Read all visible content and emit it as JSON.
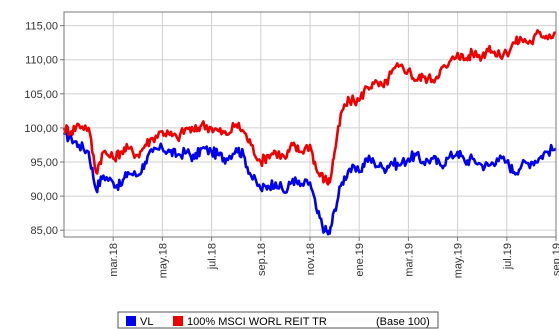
{
  "chart_data": {
    "type": "line",
    "x_tick_labels": [
      "mar.18",
      "may.18",
      "jul.18",
      "sep.18",
      "nov.18",
      "ene.19",
      "mar.19",
      "may.19",
      "jul.19",
      "sep.19"
    ],
    "ylim": [
      84,
      117
    ],
    "y_ticks": [
      85,
      90,
      95,
      100,
      105,
      110,
      115
    ],
    "y_tick_labels": [
      "85,00",
      "90,00",
      "95,00",
      "100,00",
      "105,00",
      "110,00",
      "115,00"
    ],
    "x_months_range": [
      0,
      20
    ],
    "series": [
      {
        "name": "VL",
        "color": "#0000ee",
        "x": [
          0,
          0.3,
          0.6,
          1.0,
          1.3,
          1.6,
          2.0,
          2.3,
          2.6,
          3.0,
          3.3,
          3.6,
          4.0,
          4.3,
          4.6,
          5.0,
          5.3,
          5.6,
          6.0,
          6.3,
          6.6,
          7.0,
          7.3,
          7.6,
          8.0,
          8.3,
          8.6,
          9.0,
          9.3,
          9.6,
          10.0,
          10.3,
          10.6,
          10.8,
          11.0,
          11.3,
          11.6,
          12.0,
          12.3,
          12.6,
          13.0,
          13.3,
          13.6,
          14.0,
          14.3,
          14.6,
          15.0,
          15.3,
          15.6,
          16.0,
          16.3,
          16.6,
          17.0,
          17.3,
          17.6,
          18.0,
          18.3,
          18.6,
          19.0,
          19.3,
          19.6,
          20.0
        ],
        "values": [
          99.0,
          98.5,
          97.5,
          96.5,
          91.0,
          93.0,
          92.0,
          91.5,
          93.5,
          93.0,
          95.0,
          96.5,
          97.0,
          96.5,
          96.0,
          96.5,
          95.5,
          97.0,
          96.5,
          96.0,
          95.5,
          97.0,
          96.0,
          93.0,
          91.0,
          91.5,
          92.0,
          90.5,
          92.5,
          91.5,
          92.0,
          87.5,
          85.0,
          84.5,
          88.0,
          92.0,
          94.0,
          93.5,
          95.5,
          95.0,
          94.0,
          95.0,
          94.5,
          95.5,
          96.0,
          95.0,
          95.5,
          94.5,
          95.5,
          96.5,
          95.0,
          95.5,
          94.5,
          94.5,
          95.5,
          95.0,
          93.5,
          94.5,
          95.0,
          95.5,
          96.5,
          97.0
        ]
      },
      {
        "name": "100% MSCI WORL REIT TR",
        "color": "#ee0000",
        "x": [
          0,
          0.3,
          0.6,
          1.0,
          1.3,
          1.6,
          2.0,
          2.3,
          2.6,
          3.0,
          3.3,
          3.6,
          4.0,
          4.3,
          4.6,
          5.0,
          5.3,
          5.6,
          6.0,
          6.3,
          6.6,
          7.0,
          7.3,
          7.6,
          8.0,
          8.3,
          8.6,
          9.0,
          9.3,
          9.6,
          10.0,
          10.3,
          10.6,
          10.8,
          11.0,
          11.3,
          11.6,
          12.0,
          12.3,
          12.6,
          13.0,
          13.3,
          13.6,
          14.0,
          14.3,
          14.6,
          15.0,
          15.3,
          15.6,
          16.0,
          16.3,
          16.6,
          17.0,
          17.3,
          17.6,
          18.0,
          18.3,
          18.6,
          19.0,
          19.3,
          19.6,
          20.0
        ],
        "values": [
          100.0,
          99.5,
          100.5,
          100.0,
          93.5,
          96.5,
          95.5,
          96.5,
          97.0,
          96.0,
          97.5,
          98.5,
          99.5,
          99.0,
          98.5,
          100.0,
          99.5,
          100.5,
          100.0,
          99.5,
          99.0,
          100.5,
          99.5,
          97.5,
          95.0,
          96.0,
          96.5,
          95.5,
          97.5,
          96.5,
          97.5,
          93.5,
          92.5,
          92.0,
          96.5,
          102.5,
          104.0,
          104.0,
          106.0,
          106.5,
          106.0,
          108.0,
          109.0,
          108.5,
          107.0,
          107.5,
          107.0,
          108.5,
          109.0,
          111.0,
          110.0,
          111.0,
          110.5,
          112.0,
          110.5,
          111.0,
          112.5,
          113.0,
          112.5,
          114.0,
          113.5,
          114.0
        ]
      }
    ],
    "legend": {
      "position": "bottom",
      "note": "(Base 100)"
    },
    "grid": true
  }
}
